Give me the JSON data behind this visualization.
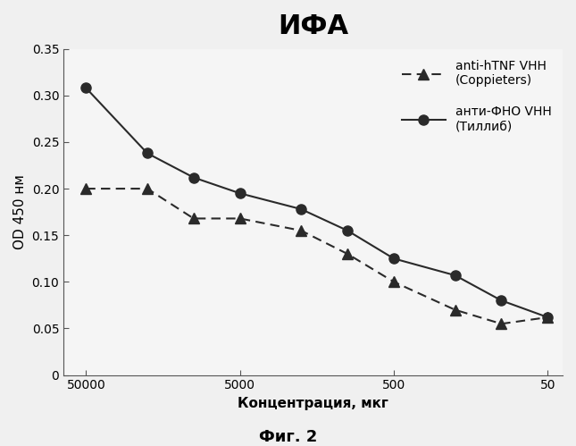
{
  "title": "ИФА",
  "xlabel": "Концентрация, мкг",
  "ylabel": "OD 450 нм",
  "caption": "Фиг. 2",
  "x_values": [
    50000,
    20000,
    10000,
    5000,
    2000,
    1000,
    500,
    200,
    100,
    50
  ],
  "series1_label": "anti-hTNF VHH\n(Coppieters)",
  "series1_y": [
    0.2,
    0.2,
    0.168,
    0.168,
    0.155,
    0.13,
    0.1,
    0.07,
    0.055,
    0.062
  ],
  "series1_color": "#2a2a2a",
  "series1_linestyle": "--",
  "series1_marker": "^",
  "series2_label": "анти-ФНО VHH\n(Тиллиб)",
  "series2_y": [
    0.308,
    0.238,
    0.212,
    0.195,
    0.178,
    0.155,
    0.125,
    0.107,
    0.08,
    0.062
  ],
  "series2_color": "#2a2a2a",
  "series2_linestyle": "-",
  "series2_marker": "o",
  "ylim": [
    0,
    0.35
  ],
  "yticks": [
    0,
    0.05,
    0.1,
    0.15,
    0.2,
    0.25,
    0.3,
    0.35
  ],
  "xtick_vals": [
    50000,
    5000,
    500,
    50
  ],
  "xtick_labels": [
    "50000",
    "5000",
    "500",
    "50"
  ],
  "background_color": "#f0f0f0",
  "plot_bg_color": "#f5f5f5",
  "title_fontsize": 22,
  "label_fontsize": 11,
  "tick_fontsize": 10,
  "legend_fontsize": 10,
  "caption_fontsize": 13
}
